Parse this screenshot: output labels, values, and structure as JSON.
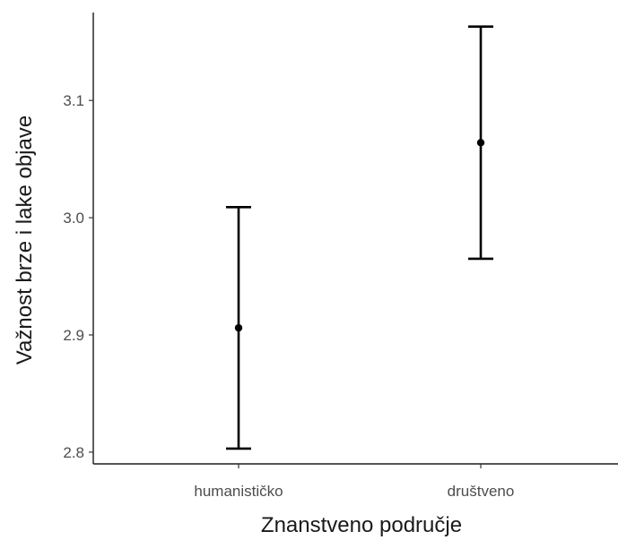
{
  "chart_data": {
    "type": "scatter",
    "xlabel": "Znanstveno područje",
    "ylabel": "Važnost brze i lake objave",
    "categories": [
      "humanističko",
      "društveno"
    ],
    "means": [
      2.906,
      3.064
    ],
    "lower": [
      2.803,
      2.965
    ],
    "upper": [
      3.009,
      3.163
    ],
    "ylim": [
      2.79,
      3.175
    ],
    "yticks": [
      2.8,
      2.9,
      3.0,
      3.1
    ],
    "ytick_labels": [
      "2.8",
      "2.9",
      "3.0",
      "3.1"
    ],
    "grid": false,
    "colors": {
      "marks": "#000000",
      "axis": "#1a1a1a",
      "tick_text": "#4d4d4d"
    }
  }
}
